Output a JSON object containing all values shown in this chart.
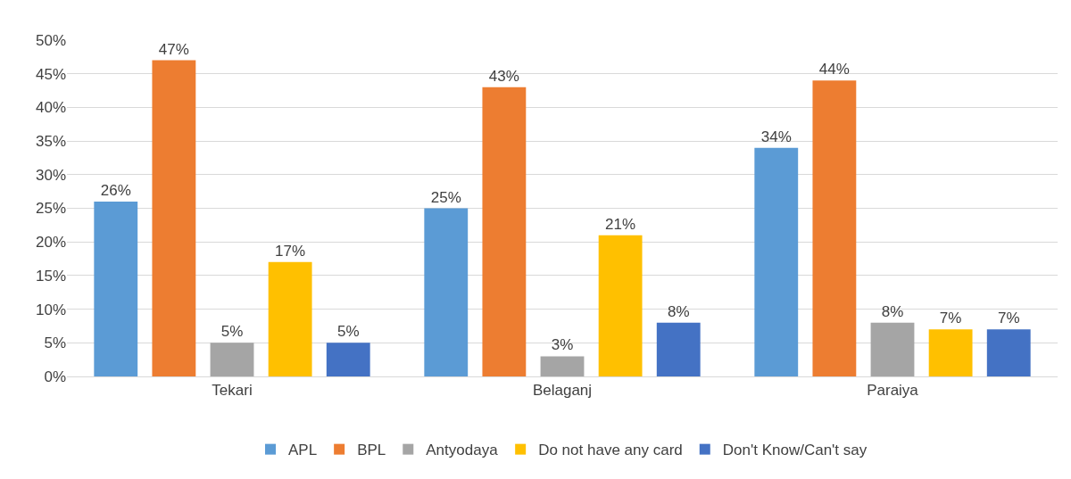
{
  "chart_data": {
    "type": "bar",
    "categories": [
      "Tekari",
      "Belaganj",
      "Paraiya"
    ],
    "series": [
      {
        "name": "APL",
        "color": "#5b9bd5",
        "values": [
          26,
          25,
          34
        ],
        "value_labels": [
          "26%",
          "25%",
          "34%"
        ]
      },
      {
        "name": "BPL",
        "color": "#ed7d31",
        "values": [
          47,
          43,
          44
        ],
        "value_labels": [
          "47%",
          "43%",
          "44%"
        ]
      },
      {
        "name": "Antyodaya",
        "color": "#a5a5a5",
        "values": [
          5,
          3,
          8
        ],
        "value_labels": [
          "5%",
          "3%",
          "8%"
        ]
      },
      {
        "name": "Do not have any card",
        "color": "#ffc000",
        "values": [
          17,
          21,
          7
        ],
        "value_labels": [
          "17%",
          "21%",
          "7%"
        ]
      },
      {
        "name": "Don't Know/Can't say",
        "color": "#4472c4",
        "values": [
          5,
          8,
          7
        ],
        "value_labels": [
          "5%",
          "8%",
          "7%"
        ]
      }
    ],
    "ylim": [
      0,
      50
    ],
    "yticks": [
      {
        "value": 0,
        "label": "0%"
      },
      {
        "value": 5,
        "label": "5%"
      },
      {
        "value": 10,
        "label": "10%"
      },
      {
        "value": 15,
        "label": "15%"
      },
      {
        "value": 20,
        "label": "20%"
      },
      {
        "value": 25,
        "label": "25%"
      },
      {
        "value": 30,
        "label": "30%"
      },
      {
        "value": 35,
        "label": "35%"
      },
      {
        "value": 40,
        "label": "40%"
      },
      {
        "value": 45,
        "label": "45%"
      },
      {
        "value": 50,
        "label": "50%"
      }
    ],
    "grid": "y",
    "legend": "bottom"
  }
}
